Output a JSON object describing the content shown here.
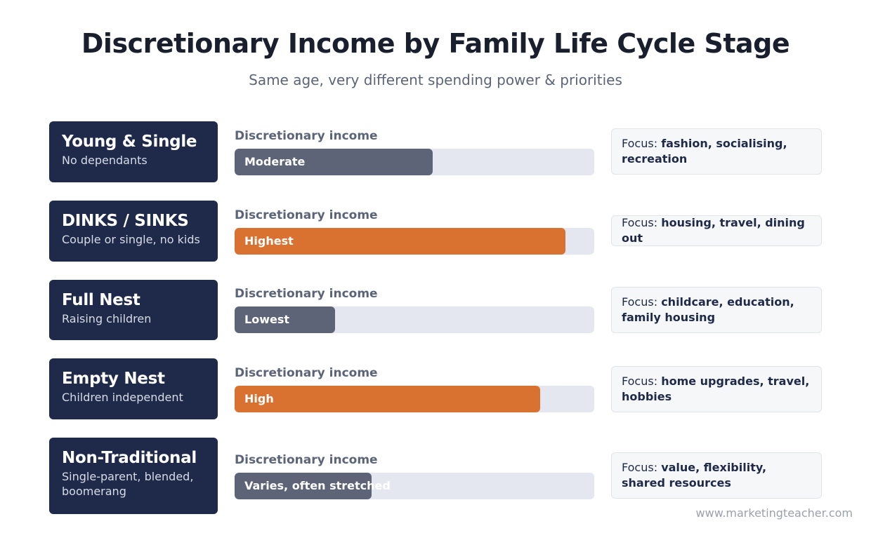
{
  "title": "Discretionary Income by Family Life Cycle Stage",
  "subtitle": "Same age, very different spending power & priorities",
  "source": "www.marketingteacher.com",
  "colors": {
    "navy": "#1f2a4a",
    "orange": "#d97230",
    "slate": "#5d6478",
    "track": "#e4e7ef"
  },
  "chart_data": {
    "type": "bar",
    "orientation": "horizontal",
    "bar_axis_label": "Discretionary income",
    "categories": [
      "Young & Single",
      "DINKS / SINKS",
      "Full Nest",
      "Empty Nest",
      "Non-Traditional"
    ],
    "values": [
      0.55,
      0.92,
      0.28,
      0.85,
      0.38
    ],
    "value_labels": [
      "Moderate",
      "Highest",
      "Lowest",
      "High",
      "Varies, often stretched"
    ],
    "highlighted": [
      false,
      true,
      false,
      true,
      false
    ]
  },
  "stages": [
    {
      "name": "Young & Single",
      "desc": "No dependants",
      "bar_label": "Discretionary income",
      "level_label": "Moderate",
      "level": 0.55,
      "color": "#5d6478",
      "focus_prefix": "Focus:",
      "focus": "fashion, socialising, recreation"
    },
    {
      "name": "DINKS / SINKS",
      "desc": "Couple or single, no kids",
      "bar_label": "Discretionary income",
      "level_label": "Highest",
      "level": 0.92,
      "color": "#d97230",
      "focus_prefix": "Focus:",
      "focus": "housing, travel, dining out"
    },
    {
      "name": "Full Nest",
      "desc": "Raising children",
      "bar_label": "Discretionary income",
      "level_label": "Lowest",
      "level": 0.28,
      "color": "#5d6478",
      "focus_prefix": "Focus:",
      "focus": "childcare, education, family housing"
    },
    {
      "name": "Empty Nest",
      "desc": "Children independent",
      "bar_label": "Discretionary income",
      "level_label": "High",
      "level": 0.85,
      "color": "#d97230",
      "focus_prefix": "Focus:",
      "focus": "home upgrades, travel, hobbies"
    },
    {
      "name": "Non-Traditional",
      "desc": "Single-parent, blended, boomerang",
      "bar_label": "Discretionary income",
      "level_label": "Varies, often stretched",
      "level": 0.38,
      "color": "#5d6478",
      "focus_prefix": "Focus:",
      "focus": "value, flexibility, shared resources"
    }
  ]
}
